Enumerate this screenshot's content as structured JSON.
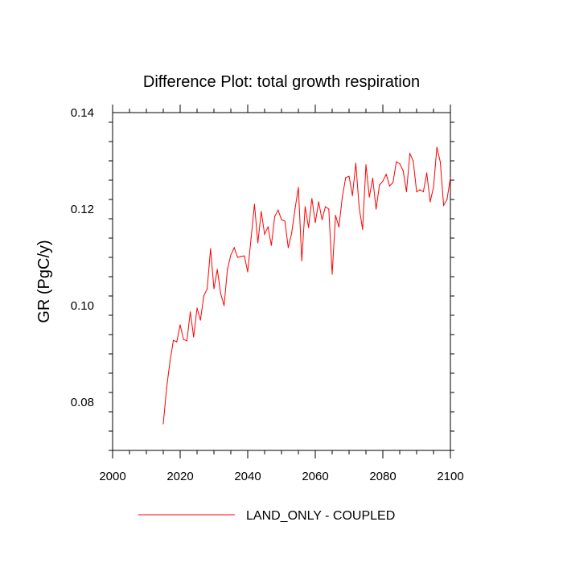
{
  "chart_data": {
    "type": "line",
    "title": "Difference Plot: total growth respiration",
    "xlabel": "",
    "ylabel": "GR  (PgC/y)",
    "xlim": [
      2000,
      2100
    ],
    "ylim": [
      0.07,
      0.14
    ],
    "x_ticks": [
      2000,
      2020,
      2040,
      2060,
      2080,
      2100
    ],
    "x_tick_labels": [
      "2000",
      "2020",
      "2040",
      "2060",
      "2080",
      "2100"
    ],
    "y_ticks": [
      0.08,
      0.1,
      0.12,
      0.14
    ],
    "y_tick_labels": [
      "0.08",
      "0.10",
      "0.12",
      "0.14"
    ],
    "grid": false,
    "legend_position": "bottom",
    "series": [
      {
        "name": "LAND_ONLY - COUPLED",
        "color": "#ff0000",
        "x": [
          2015,
          2016,
          2017,
          2018,
          2019,
          2020,
          2021,
          2022,
          2023,
          2024,
          2025,
          2026,
          2027,
          2028,
          2029,
          2030,
          2031,
          2032,
          2033,
          2034,
          2035,
          2036,
          2037,
          2038,
          2039,
          2040,
          2041,
          2042,
          2043,
          2044,
          2045,
          2046,
          2047,
          2048,
          2049,
          2050,
          2051,
          2052,
          2053,
          2054,
          2055,
          2056,
          2057,
          2058,
          2059,
          2060,
          2061,
          2062,
          2063,
          2064,
          2065,
          2066,
          2067,
          2068,
          2069,
          2070,
          2071,
          2072,
          2073,
          2074,
          2075,
          2076,
          2077,
          2078,
          2079,
          2080,
          2081,
          2082,
          2083,
          2084,
          2085,
          2086,
          2087,
          2088,
          2089,
          2090,
          2091,
          2092,
          2093,
          2094,
          2095,
          2096,
          2097,
          2098,
          2099,
          2100
        ],
        "values": [
          0.0755,
          0.083,
          0.0885,
          0.0928,
          0.0925,
          0.096,
          0.093,
          0.0927,
          0.0987,
          0.0935,
          0.0995,
          0.097,
          0.102,
          0.1035,
          0.1118,
          0.1035,
          0.1075,
          0.1025,
          0.1,
          0.1075,
          0.1105,
          0.112,
          0.11,
          0.1102,
          0.1103,
          0.107,
          0.114,
          0.121,
          0.113,
          0.1195,
          0.1148,
          0.1163,
          0.1125,
          0.1185,
          0.1198,
          0.1178,
          0.1175,
          0.112,
          0.115,
          0.12,
          0.1245,
          0.1093,
          0.1205,
          0.1162,
          0.1222,
          0.1172,
          0.1215,
          0.1178,
          0.1205,
          0.12,
          0.1065,
          0.1187,
          0.1163,
          0.1225,
          0.1265,
          0.1268,
          0.1228,
          0.1295,
          0.1203,
          0.1158,
          0.1292,
          0.1225,
          0.1264,
          0.12,
          0.125,
          0.1258,
          0.1272,
          0.1248,
          0.1255,
          0.1298,
          0.1294,
          0.128,
          0.1236,
          0.1315,
          0.13,
          0.1236,
          0.124,
          0.1236,
          0.1275,
          0.1215,
          0.1245,
          0.1328,
          0.1298,
          0.1208,
          0.122,
          0.1265
        ]
      }
    ]
  }
}
